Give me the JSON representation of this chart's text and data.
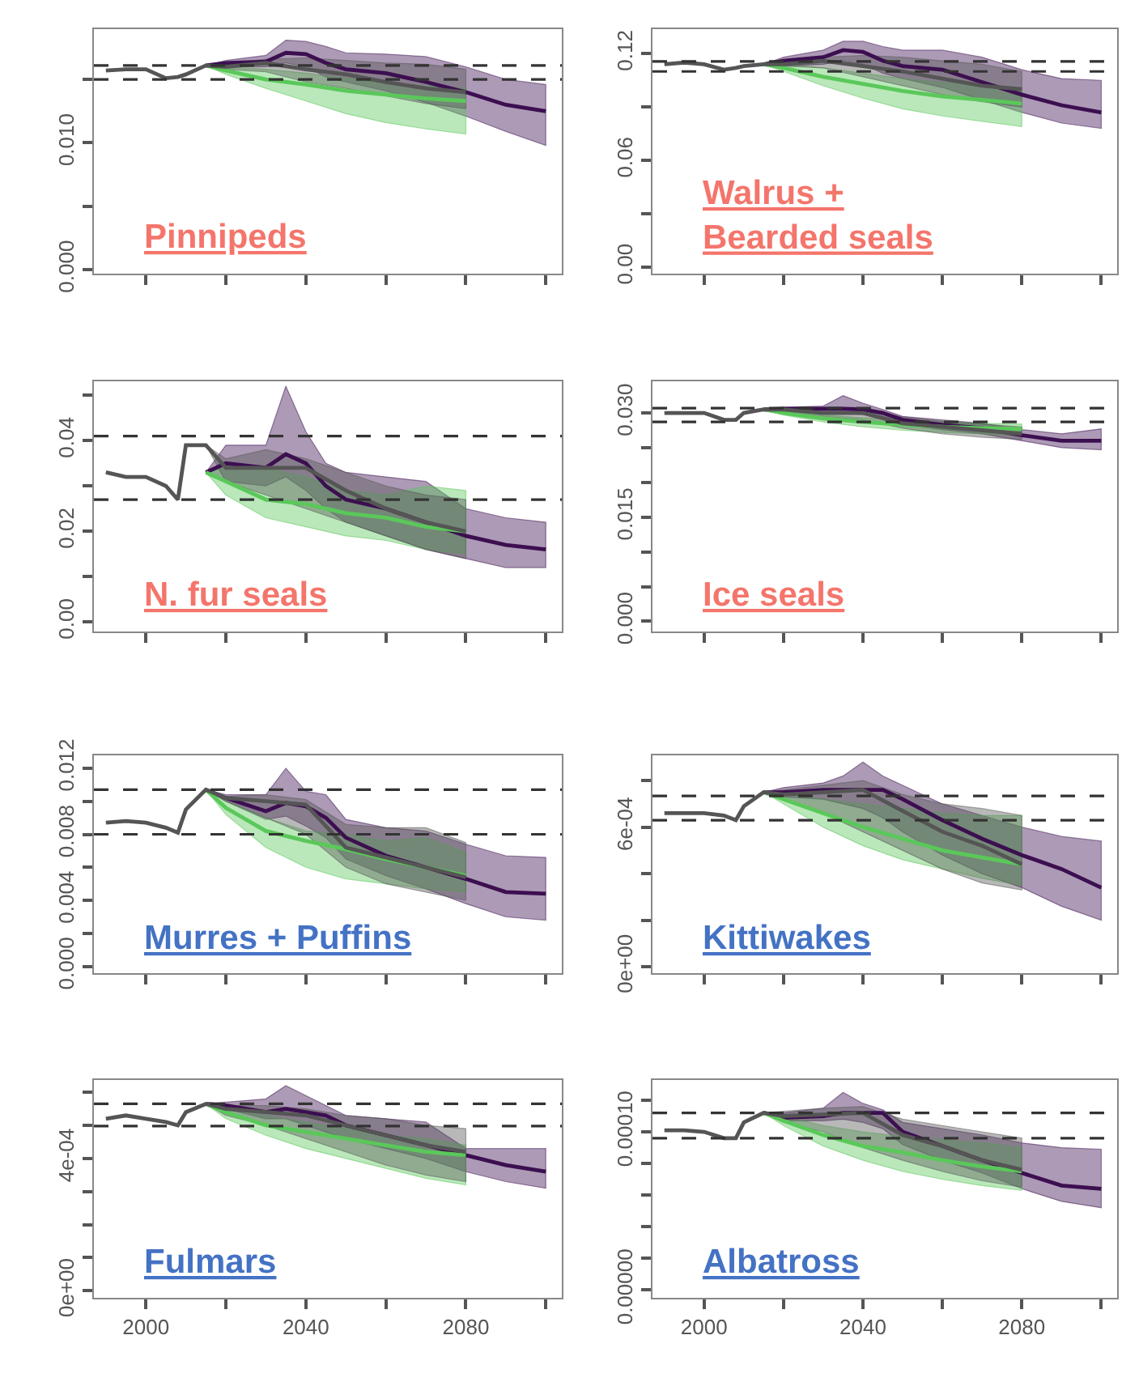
{
  "chart_data": [
    {
      "type": "line",
      "title": "Pinnipeds",
      "tick_labels": "y",
      "grid": false,
      "line_style": "solid",
      "xlim": [
        1987,
        2104
      ],
      "xticks": [
        {
          "value": 2000,
          "label": null
        },
        {
          "value": 2020,
          "label": null
        },
        {
          "value": 2040,
          "label": null
        },
        {
          "value": 2060,
          "label": null
        },
        {
          "value": 2080,
          "label": null
        },
        {
          "value": 2100,
          "label": null
        }
      ],
      "ylim": [
        -0.0003,
        0.019
      ],
      "yticks": [
        {
          "value": 0,
          "label": "0.000"
        },
        {
          "value": 0.005,
          "label": null
        },
        {
          "value": 0.01,
          "label": "0.010"
        },
        {
          "value": 0.015,
          "label": null
        }
      ],
      "ref_lines": [
        {
          "axis": "y",
          "value": 0.0161,
          "color": "#333333",
          "line_style": "dashed"
        },
        {
          "axis": "y",
          "value": 0.015,
          "color": "#333333",
          "line_style": "dashed"
        }
      ],
      "series": [
        {
          "color": "#3c0f50",
          "x": [
            2015,
            2020,
            2030,
            2035,
            2040,
            2045,
            2050,
            2060,
            2070,
            2080,
            2090,
            2100
          ],
          "values": [
            0.0161,
            0.0163,
            0.0164,
            0.0171,
            0.017,
            0.0163,
            0.0158,
            0.0155,
            0.0148,
            0.014,
            0.013,
            0.0125
          ],
          "lower": [
            0.0161,
            0.016,
            0.016,
            0.0163,
            0.016,
            0.0152,
            0.0148,
            0.0141,
            0.0132,
            0.0121,
            0.0109,
            0.0098
          ],
          "upper": [
            0.0161,
            0.0165,
            0.0169,
            0.0181,
            0.018,
            0.0176,
            0.0171,
            0.017,
            0.0168,
            0.016,
            0.015,
            0.0146
          ]
        },
        {
          "color": "#5ac85a",
          "x": [
            2015,
            2020,
            2030,
            2040,
            2050,
            2060,
            2070,
            2080
          ],
          "values": [
            0.0161,
            0.0157,
            0.015,
            0.0146,
            0.0141,
            0.0138,
            0.0135,
            0.0133
          ],
          "lower": [
            0.0161,
            0.0154,
            0.0143,
            0.0133,
            0.0123,
            0.0116,
            0.0111,
            0.0107
          ],
          "upper": [
            0.0161,
            0.016,
            0.0158,
            0.0155,
            0.0151,
            0.0147,
            0.0145,
            0.0143
          ]
        },
        {
          "color": "#555555",
          "x": [
            1990,
            1995,
            2000,
            2005,
            2008,
            2010,
            2015,
            2020,
            2030,
            2040,
            2050,
            2060,
            2070,
            2080
          ],
          "values": [
            0.0157,
            0.0158,
            0.0158,
            0.0151,
            0.0152,
            0.0154,
            0.0161,
            0.016,
            0.0163,
            0.0158,
            0.0154,
            0.0148,
            0.0143,
            0.014
          ],
          "lower": [
            null,
            null,
            null,
            null,
            null,
            null,
            0.0161,
            0.0158,
            0.0156,
            0.0148,
            0.0143,
            0.0137,
            0.0131,
            0.0127
          ],
          "upper": [
            null,
            null,
            null,
            null,
            null,
            null,
            0.0161,
            0.0162,
            0.0166,
            0.0167,
            0.0165,
            0.0163,
            0.0162,
            0.0158
          ]
        }
      ]
    },
    {
      "type": "line",
      "title": "Walrus +\nBearded seals",
      "tick_labels": "y",
      "grid": false,
      "line_style": "solid",
      "xlim": [
        1987,
        2104
      ],
      "xticks": [
        {
          "value": 2000,
          "label": null
        },
        {
          "value": 2020,
          "label": null
        },
        {
          "value": 2040,
          "label": null
        },
        {
          "value": 2060,
          "label": null
        },
        {
          "value": 2080,
          "label": null
        },
        {
          "value": 2100,
          "label": null
        }
      ],
      "ylim": [
        -0.0035,
        0.134
      ],
      "yticks": [
        {
          "value": 0,
          "label": "0.00"
        },
        {
          "value": 0.03,
          "label": null
        },
        {
          "value": 0.06,
          "label": "0.06"
        },
        {
          "value": 0.09,
          "label": null
        },
        {
          "value": 0.12,
          "label": "0.12"
        }
      ],
      "ref_lines": [
        {
          "axis": "y",
          "value": 0.1156,
          "color": "#333333",
          "line_style": "dashed"
        },
        {
          "axis": "y",
          "value": 0.11,
          "color": "#333333",
          "line_style": "dashed"
        }
      ],
      "series": [
        {
          "color": "#3c0f50",
          "x": [
            2015,
            2020,
            2030,
            2035,
            2040,
            2045,
            2050,
            2060,
            2070,
            2080,
            2090,
            2100
          ],
          "values": [
            0.114,
            0.116,
            0.118,
            0.122,
            0.121,
            0.116,
            0.113,
            0.111,
            0.104,
            0.097,
            0.091,
            0.087
          ],
          "lower": [
            0.114,
            0.113,
            0.114,
            0.116,
            0.114,
            0.109,
            0.106,
            0.101,
            0.094,
            0.087,
            0.081,
            0.078
          ],
          "upper": [
            0.114,
            0.118,
            0.122,
            0.127,
            0.127,
            0.124,
            0.122,
            0.122,
            0.118,
            0.111,
            0.106,
            0.105
          ]
        },
        {
          "color": "#5ac85a",
          "x": [
            2015,
            2020,
            2030,
            2040,
            2050,
            2060,
            2070,
            2080
          ],
          "values": [
            0.114,
            0.112,
            0.107,
            0.103,
            0.099,
            0.096,
            0.094,
            0.092
          ],
          "lower": [
            0.114,
            0.11,
            0.102,
            0.095,
            0.089,
            0.085,
            0.082,
            0.079
          ],
          "upper": [
            0.114,
            0.114,
            0.112,
            0.109,
            0.106,
            0.104,
            0.102,
            0.1
          ]
        },
        {
          "color": "#555555",
          "x": [
            1990,
            1995,
            2000,
            2005,
            2008,
            2010,
            2015,
            2020,
            2030,
            2040,
            2050,
            2060,
            2070,
            2080
          ],
          "values": [
            0.114,
            0.115,
            0.114,
            0.111,
            0.112,
            0.113,
            0.114,
            0.114,
            0.116,
            0.113,
            0.11,
            0.106,
            0.102,
            0.1
          ],
          "lower": [
            null,
            null,
            null,
            null,
            null,
            null,
            0.114,
            0.113,
            0.112,
            0.107,
            0.102,
            0.097,
            0.093,
            0.09
          ],
          "upper": [
            null,
            null,
            null,
            null,
            null,
            null,
            0.114,
            0.115,
            0.118,
            0.119,
            0.118,
            0.116,
            0.114,
            0.11
          ]
        }
      ]
    },
    {
      "type": "line",
      "title": "N. fur seals",
      "tick_labels": "y",
      "grid": false,
      "line_style": "solid",
      "xlim": [
        1987,
        2104
      ],
      "xticks": [
        {
          "value": 2000,
          "label": null
        },
        {
          "value": 2020,
          "label": null
        },
        {
          "value": 2040,
          "label": null
        },
        {
          "value": 2060,
          "label": null
        },
        {
          "value": 2080,
          "label": null
        },
        {
          "value": 2100,
          "label": null
        }
      ],
      "ylim": [
        -0.002,
        0.053
      ],
      "yticks": [
        {
          "value": 0,
          "label": "0.00"
        },
        {
          "value": 0.01,
          "label": null
        },
        {
          "value": 0.02,
          "label": "0.02"
        },
        {
          "value": 0.03,
          "label": null
        },
        {
          "value": 0.04,
          "label": "0.04"
        },
        {
          "value": 0.05,
          "label": null
        }
      ],
      "ref_lines": [
        {
          "axis": "y",
          "value": 0.041,
          "color": "#333333",
          "line_style": "dashed"
        },
        {
          "axis": "y",
          "value": 0.027,
          "color": "#333333",
          "line_style": "dashed"
        }
      ],
      "series": [
        {
          "color": "#3c0f50",
          "x": [
            2015,
            2020,
            2030,
            2035,
            2040,
            2045,
            2050,
            2060,
            2070,
            2080,
            2090,
            2100
          ],
          "values": [
            0.033,
            0.035,
            0.034,
            0.037,
            0.035,
            0.03,
            0.027,
            0.025,
            0.022,
            0.019,
            0.017,
            0.016
          ],
          "lower": [
            0.033,
            0.031,
            0.03,
            0.032,
            0.029,
            0.025,
            0.022,
            0.019,
            0.016,
            0.014,
            0.012,
            0.012
          ],
          "upper": [
            0.033,
            0.039,
            0.039,
            0.052,
            0.042,
            0.035,
            0.033,
            0.032,
            0.031,
            0.025,
            0.023,
            0.022
          ]
        },
        {
          "color": "#5ac85a",
          "x": [
            2015,
            2020,
            2030,
            2040,
            2050,
            2060,
            2070,
            2080
          ],
          "values": [
            0.033,
            0.031,
            0.027,
            0.026,
            0.024,
            0.023,
            0.021,
            0.02
          ],
          "lower": [
            0.033,
            0.028,
            0.023,
            0.021,
            0.019,
            0.018,
            0.016,
            0.015
          ],
          "upper": [
            0.033,
            0.034,
            0.034,
            0.032,
            0.029,
            0.028,
            0.03,
            0.029
          ]
        },
        {
          "color": "#555555",
          "x": [
            1990,
            1995,
            2000,
            2005,
            2008,
            2010,
            2015,
            2020,
            2030,
            2040,
            2050,
            2060,
            2070,
            2080
          ],
          "values": [
            0.033,
            0.032,
            0.032,
            0.03,
            0.027,
            0.039,
            0.039,
            0.034,
            0.034,
            0.034,
            0.029,
            0.025,
            0.022,
            0.02
          ],
          "lower": [
            null,
            null,
            null,
            null,
            null,
            null,
            0.039,
            0.031,
            0.028,
            0.025,
            0.022,
            0.019,
            0.016,
            0.014
          ],
          "upper": [
            null,
            null,
            null,
            null,
            null,
            null,
            0.039,
            0.036,
            0.038,
            0.036,
            0.033,
            0.03,
            0.028,
            0.027
          ]
        }
      ]
    },
    {
      "type": "line",
      "title": "Ice seals",
      "tick_labels": "y",
      "grid": false,
      "line_style": "solid",
      "xlim": [
        1987,
        2104
      ],
      "xticks": [
        {
          "value": 2000,
          "label": null
        },
        {
          "value": 2020,
          "label": null
        },
        {
          "value": 2040,
          "label": null
        },
        {
          "value": 2060,
          "label": null
        },
        {
          "value": 2080,
          "label": null
        },
        {
          "value": 2100,
          "label": null
        }
      ],
      "ylim": [
        -0.0014,
        0.0345
      ],
      "yticks": [
        {
          "value": 0,
          "label": "0.000"
        },
        {
          "value": 0.005,
          "label": null
        },
        {
          "value": 0.01,
          "label": null
        },
        {
          "value": 0.015,
          "label": "0.015"
        },
        {
          "value": 0.02,
          "label": null
        },
        {
          "value": 0.025,
          "label": null
        },
        {
          "value": 0.03,
          "label": "0.030"
        }
      ],
      "ref_lines": [
        {
          "axis": "y",
          "value": 0.0307,
          "color": "#333333",
          "line_style": "dashed"
        },
        {
          "axis": "y",
          "value": 0.0287,
          "color": "#333333",
          "line_style": "dashed"
        }
      ],
      "series": [
        {
          "color": "#3c0f50",
          "x": [
            2015,
            2020,
            2030,
            2035,
            2040,
            2045,
            2050,
            2060,
            2070,
            2080,
            2090,
            2100
          ],
          "values": [
            0.0305,
            0.0306,
            0.0306,
            0.0306,
            0.0305,
            0.03,
            0.029,
            0.0283,
            0.0278,
            0.0268,
            0.026,
            0.026
          ],
          "lower": [
            0.0305,
            0.0303,
            0.0301,
            0.03,
            0.0298,
            0.0292,
            0.0283,
            0.0276,
            0.027,
            0.026,
            0.025,
            0.0247
          ],
          "upper": [
            0.0305,
            0.0308,
            0.031,
            0.0325,
            0.0314,
            0.0305,
            0.0295,
            0.029,
            0.0285,
            0.0276,
            0.027,
            0.0277
          ]
        },
        {
          "color": "#5ac85a",
          "x": [
            2015,
            2020,
            2030,
            2040,
            2050,
            2060,
            2070,
            2080
          ],
          "values": [
            0.0305,
            0.03,
            0.0292,
            0.0287,
            0.0283,
            0.028,
            0.0278,
            0.0277
          ],
          "lower": [
            0.0305,
            0.0297,
            0.0287,
            0.028,
            0.0275,
            0.0272,
            0.027,
            0.0268
          ],
          "upper": [
            0.0305,
            0.0303,
            0.0297,
            0.0293,
            0.029,
            0.0287,
            0.0285,
            0.0284
          ]
        },
        {
          "color": "#555555",
          "x": [
            1990,
            1995,
            2000,
            2005,
            2008,
            2010,
            2015,
            2020,
            2030,
            2040,
            2050,
            2060,
            2070,
            2080
          ],
          "values": [
            0.03,
            0.03,
            0.03,
            0.029,
            0.029,
            0.03,
            0.0305,
            0.0305,
            0.03,
            0.03,
            0.0285,
            0.028,
            0.0275,
            0.027
          ],
          "lower": [
            null,
            null,
            null,
            null,
            null,
            null,
            0.0305,
            0.0302,
            0.0295,
            0.029,
            0.0278,
            0.027,
            0.0265,
            0.0262
          ],
          "upper": [
            null,
            null,
            null,
            null,
            null,
            null,
            0.0305,
            0.0308,
            0.0306,
            0.0305,
            0.0294,
            0.0288,
            0.0284,
            0.028
          ]
        }
      ]
    },
    {
      "type": "line",
      "title": "Murres + Puffins",
      "tick_labels": "y",
      "grid": false,
      "line_style": "solid",
      "xlim": [
        1987,
        2104
      ],
      "xticks": [
        {
          "value": 2000,
          "label": null
        },
        {
          "value": 2020,
          "label": null
        },
        {
          "value": 2040,
          "label": null
        },
        {
          "value": 2060,
          "label": null
        },
        {
          "value": 2080,
          "label": null
        },
        {
          "value": 2100,
          "label": null
        }
      ],
      "ylim": [
        -0.0004,
        0.0128
      ],
      "yticks": [
        {
          "value": 0,
          "label": "0.000"
        },
        {
          "value": 0.002,
          "label": null
        },
        {
          "value": 0.004,
          "label": "0.004"
        },
        {
          "value": 0.006,
          "label": null
        },
        {
          "value": 0.008,
          "label": "0.008"
        },
        {
          "value": 0.01,
          "label": null
        },
        {
          "value": 0.012,
          "label": "0.012"
        }
      ],
      "ref_lines": [
        {
          "axis": "y",
          "value": 0.0107,
          "color": "#333333",
          "line_style": "dashed"
        },
        {
          "axis": "y",
          "value": 0.008,
          "color": "#333333",
          "line_style": "dashed"
        }
      ],
      "series": [
        {
          "color": "#3c0f50",
          "x": [
            2015,
            2020,
            2030,
            2035,
            2040,
            2045,
            2050,
            2060,
            2070,
            2080,
            2090,
            2100
          ],
          "values": [
            0.0107,
            0.0102,
            0.0094,
            0.0099,
            0.0097,
            0.009,
            0.0078,
            0.0067,
            0.006,
            0.0053,
            0.0045,
            0.0044
          ],
          "lower": [
            0.0107,
            0.01,
            0.0089,
            0.0091,
            0.0085,
            0.0078,
            0.0065,
            0.0055,
            0.0047,
            0.0038,
            0.003,
            0.0028
          ],
          "upper": [
            0.0107,
            0.0104,
            0.0104,
            0.012,
            0.0106,
            0.0104,
            0.0089,
            0.0084,
            0.0082,
            0.0074,
            0.0067,
            0.0066
          ]
        },
        {
          "color": "#5ac85a",
          "x": [
            2015,
            2020,
            2030,
            2040,
            2050,
            2060,
            2070,
            2080
          ],
          "values": [
            0.0107,
            0.0096,
            0.0082,
            0.0076,
            0.0071,
            0.0065,
            0.006,
            0.0055
          ],
          "lower": [
            0.0107,
            0.0092,
            0.0072,
            0.006,
            0.0053,
            0.005,
            0.0047,
            0.0045
          ],
          "upper": [
            0.0107,
            0.01,
            0.009,
            0.0082,
            0.008,
            0.0076,
            0.0078,
            0.0069
          ]
        },
        {
          "color": "#555555",
          "x": [
            1990,
            1995,
            2000,
            2005,
            2008,
            2010,
            2015,
            2020,
            2030,
            2040,
            2050,
            2060,
            2070,
            2080
          ],
          "values": [
            0.0087,
            0.0088,
            0.0087,
            0.0084,
            0.0081,
            0.0095,
            0.0107,
            0.0102,
            0.01,
            0.0098,
            0.0072,
            0.0066,
            0.006,
            0.0054
          ],
          "lower": [
            null,
            null,
            null,
            null,
            null,
            null,
            0.0107,
            0.01,
            0.009,
            0.008,
            0.006,
            0.005,
            0.0045,
            0.004
          ],
          "upper": [
            null,
            null,
            null,
            null,
            null,
            null,
            0.0107,
            0.0103,
            0.0104,
            0.0101,
            0.0086,
            0.0084,
            0.0084,
            0.0075
          ]
        }
      ]
    },
    {
      "type": "line",
      "title": "Kittiwakes",
      "tick_labels": "y",
      "grid": false,
      "line_style": "solid",
      "xlim": [
        1987,
        2104
      ],
      "xticks": [
        {
          "value": 2000,
          "label": null
        },
        {
          "value": 2020,
          "label": null
        },
        {
          "value": 2040,
          "label": null
        },
        {
          "value": 2060,
          "label": null
        },
        {
          "value": 2080,
          "label": null
        },
        {
          "value": 2100,
          "label": null
        }
      ],
      "ylim": [
        -2.7e-05,
        0.00091
      ],
      "yticks": [
        {
          "value": 0,
          "label": "0e+00"
        },
        {
          "value": 0.0002,
          "label": null
        },
        {
          "value": 0.0004,
          "label": null
        },
        {
          "value": 0.0006,
          "label": "6e-04"
        },
        {
          "value": 0.0008,
          "label": null
        }
      ],
      "ref_lines": [
        {
          "axis": "y",
          "value": 0.000734,
          "color": "#333333",
          "line_style": "dashed"
        },
        {
          "axis": "y",
          "value": 0.00063,
          "color": "#333333",
          "line_style": "dashed"
        }
      ],
      "series": [
        {
          "color": "#3c0f50",
          "x": [
            2015,
            2020,
            2030,
            2035,
            2040,
            2045,
            2050,
            2060,
            2070,
            2080,
            2090,
            2100
          ],
          "values": [
            0.00075,
            0.00075,
            0.00076,
            0.00076,
            0.00076,
            0.00076,
            0.00072,
            0.00063,
            0.00055,
            0.00048,
            0.00042,
            0.00034
          ],
          "lower": [
            0.00075,
            0.00073,
            0.00072,
            0.0007,
            0.00068,
            0.00064,
            0.00058,
            0.00048,
            0.0004,
            0.00034,
            0.00026,
            0.0002
          ],
          "upper": [
            0.00075,
            0.00077,
            0.00079,
            0.00082,
            0.00088,
            0.00082,
            0.00078,
            0.0007,
            0.00065,
            0.0006,
            0.00056,
            0.00054
          ]
        },
        {
          "color": "#5ac85a",
          "x": [
            2015,
            2020,
            2030,
            2040,
            2050,
            2060,
            2070,
            2080
          ],
          "values": [
            0.00075,
            0.00072,
            0.00066,
            0.0006,
            0.00055,
            0.0005,
            0.00047,
            0.00044
          ],
          "lower": [
            0.00075,
            0.0007,
            0.0006,
            0.00052,
            0.00046,
            0.00042,
            0.00038,
            0.00035
          ],
          "upper": [
            0.00075,
            0.00074,
            0.00072,
            0.0007,
            0.00068,
            0.00066,
            0.00065,
            0.00065
          ]
        },
        {
          "color": "#555555",
          "x": [
            1990,
            1995,
            2000,
            2005,
            2008,
            2010,
            2015,
            2020,
            2030,
            2040,
            2050,
            2060,
            2070,
            2080
          ],
          "values": [
            0.00066,
            0.00066,
            0.00066,
            0.00065,
            0.00063,
            0.00069,
            0.00075,
            0.00074,
            0.00075,
            0.00076,
            0.00067,
            0.00058,
            0.00052,
            0.00044
          ],
          "lower": [
            null,
            null,
            null,
            null,
            null,
            null,
            0.00075,
            0.00072,
            0.00066,
            0.00058,
            0.0005,
            0.00042,
            0.00036,
            0.00033
          ],
          "upper": [
            null,
            null,
            null,
            null,
            null,
            null,
            0.00075,
            0.00076,
            0.00078,
            0.0008,
            0.00074,
            0.0007,
            0.00068,
            0.00065
          ]
        }
      ]
    },
    {
      "type": "line",
      "title": "Fulmars",
      "grid": false,
      "line_style": "solid",
      "xlim": [
        1987,
        2104
      ],
      "xticks": [
        {
          "value": 2000,
          "label": "2000"
        },
        {
          "value": 2020,
          "label": null
        },
        {
          "value": 2040,
          "label": "2040"
        },
        {
          "value": 2060,
          "label": null
        },
        {
          "value": 2080,
          "label": "2080"
        },
        {
          "value": 2100,
          "label": null
        }
      ],
      "ylim": [
        -2.1e-05,
        0.000638
      ],
      "yticks": [
        {
          "value": 0,
          "label": "0e+00"
        },
        {
          "value": 0.0001,
          "label": null
        },
        {
          "value": 0.0002,
          "label": null
        },
        {
          "value": 0.0003,
          "label": null
        },
        {
          "value": 0.0004,
          "label": "4e-04"
        },
        {
          "value": 0.0005,
          "label": null
        },
        {
          "value": 0.0006,
          "label": null
        }
      ],
      "ref_lines": [
        {
          "axis": "y",
          "value": 0.000565,
          "color": "#333333",
          "line_style": "dashed"
        },
        {
          "axis": "y",
          "value": 0.000498,
          "color": "#333333",
          "line_style": "dashed"
        }
      ],
      "series": [
        {
          "color": "#3c0f50",
          "x": [
            2015,
            2020,
            2030,
            2035,
            2040,
            2045,
            2050,
            2060,
            2070,
            2080,
            2090,
            2100
          ],
          "values": [
            0.000565,
            0.00056,
            0.00054,
            0.00055,
            0.00054,
            0.00053,
            0.0005,
            0.00047,
            0.00044,
            0.00041,
            0.00038,
            0.00036
          ],
          "lower": [
            0.000565,
            0.00055,
            0.00052,
            0.00052,
            0.0005,
            0.00048,
            0.00046,
            0.00043,
            0.0004,
            0.00036,
            0.00033,
            0.00031
          ],
          "upper": [
            0.000565,
            0.00057,
            0.00058,
            0.00062,
            0.00059,
            0.00056,
            0.00053,
            0.00052,
            0.00051,
            0.00043,
            0.00043,
            0.00043
          ]
        },
        {
          "color": "#5ac85a",
          "x": [
            2015,
            2020,
            2030,
            2040,
            2050,
            2060,
            2070,
            2080
          ],
          "values": [
            0.000565,
            0.00054,
            0.0005,
            0.00048,
            0.00046,
            0.00044,
            0.00042,
            0.00041
          ],
          "lower": [
            0.000565,
            0.00052,
            0.00047,
            0.00043,
            0.0004,
            0.00037,
            0.00034,
            0.00032
          ],
          "upper": [
            0.000565,
            0.00055,
            0.00053,
            0.00051,
            0.00049,
            0.00047,
            0.00046,
            0.00044
          ]
        },
        {
          "color": "#555555",
          "x": [
            1990,
            1995,
            2000,
            2005,
            2008,
            2010,
            2015,
            2020,
            2030,
            2040,
            2050,
            2060,
            2070,
            2080
          ],
          "values": [
            0.00052,
            0.00053,
            0.00052,
            0.00051,
            0.0005,
            0.00054,
            0.000565,
            0.00055,
            0.00054,
            0.00053,
            0.0005,
            0.00047,
            0.00044,
            0.00042
          ],
          "lower": [
            null,
            null,
            null,
            null,
            null,
            null,
            0.000565,
            0.00053,
            0.0005,
            0.00046,
            0.00042,
            0.00038,
            0.00035,
            0.00033
          ],
          "upper": [
            null,
            null,
            null,
            null,
            null,
            null,
            0.000565,
            0.00056,
            0.00056,
            0.00055,
            0.00053,
            0.00052,
            0.0005,
            0.00049
          ]
        }
      ]
    },
    {
      "type": "line",
      "title": "Albatross",
      "grid": false,
      "line_style": "solid",
      "xlim": [
        1987,
        2104
      ],
      "xticks": [
        {
          "value": 2000,
          "label": "2000"
        },
        {
          "value": 2020,
          "label": null
        },
        {
          "value": 2040,
          "label": "2040"
        },
        {
          "value": 2060,
          "label": null
        },
        {
          "value": 2080,
          "label": "2080"
        },
        {
          "value": 2100,
          "label": null
        }
      ],
      "ylim": [
        -5e-06,
        0.000133
      ],
      "yticks": [
        {
          "value": 0,
          "label": "0.00000"
        },
        {
          "value": 2e-05,
          "label": null
        },
        {
          "value": 4e-05,
          "label": null
        },
        {
          "value": 6e-05,
          "label": null
        },
        {
          "value": 8e-05,
          "label": null
        },
        {
          "value": 0.0001,
          "label": "0.00010"
        },
        {
          "value": 0.00012,
          "label": null
        }
      ],
      "ref_lines": [
        {
          "axis": "y",
          "value": 0.000112,
          "color": "#333333",
          "line_style": "dashed"
        },
        {
          "axis": "y",
          "value": 9.6e-05,
          "color": "#333333",
          "line_style": "dashed"
        }
      ],
      "series": [
        {
          "color": "#3c0f50",
          "x": [
            2015,
            2020,
            2030,
            2035,
            2040,
            2045,
            2050,
            2060,
            2070,
            2080,
            2090,
            2100
          ],
          "values": [
            0.000112,
            0.000109,
            0.00011,
            0.000112,
            0.000112,
            0.000112,
            0.0001,
            9.1e-05,
            8.2e-05,
            7.4e-05,
            6.6e-05,
            6.4e-05
          ],
          "lower": [
            0.000112,
            0.000107,
            0.000107,
            0.000108,
            0.000106,
            0.000102,
            9.2e-05,
            8.2e-05,
            7.4e-05,
            6.4e-05,
            5.6e-05,
            5.2e-05
          ],
          "upper": [
            0.000112,
            0.000112,
            0.000115,
            0.000125,
            0.000118,
            0.000114,
            0.000106,
            0.000102,
            9.8e-05,
            9.3e-05,
            9e-05,
            8.9e-05
          ]
        },
        {
          "color": "#5ac85a",
          "x": [
            2015,
            2020,
            2030,
            2040,
            2050,
            2060,
            2070,
            2080
          ],
          "values": [
            0.000112,
            0.000107,
            9.8e-05,
            9.1e-05,
            8.7e-05,
            8.2e-05,
            7.8e-05,
            7.5e-05
          ],
          "lower": [
            0.000112,
            0.000104,
            9.1e-05,
            8.2e-05,
            7.5e-05,
            7e-05,
            6.6e-05,
            6.3e-05
          ],
          "upper": [
            0.000112,
            0.00011,
            0.000104,
            0.0001,
            9.7e-05,
            9.5e-05,
            9.3e-05,
            9e-05
          ]
        },
        {
          "color": "#555555",
          "x": [
            1990,
            1995,
            2000,
            2005,
            2008,
            2010,
            2015,
            2020,
            2030,
            2040,
            2050,
            2060,
            2070,
            2080
          ],
          "values": [
            0.000101,
            0.000101,
            0.0001,
            9.6e-05,
            9.6e-05,
            0.000106,
            0.000112,
            0.00011,
            0.000111,
            0.000112,
            9.8e-05,
            9.1e-05,
            8.2e-05,
            7.6e-05
          ],
          "lower": [
            null,
            null,
            null,
            null,
            null,
            null,
            0.000112,
            0.000106,
            0.0001,
            9e-05,
            8.2e-05,
            7.5e-05,
            6.9e-05,
            6.5e-05
          ],
          "upper": [
            null,
            null,
            null,
            null,
            null,
            null,
            0.000112,
            0.000113,
            0.000115,
            0.000116,
            0.000108,
            0.000104,
            0.0001,
            9.6e-05
          ]
        }
      ]
    }
  ]
}
